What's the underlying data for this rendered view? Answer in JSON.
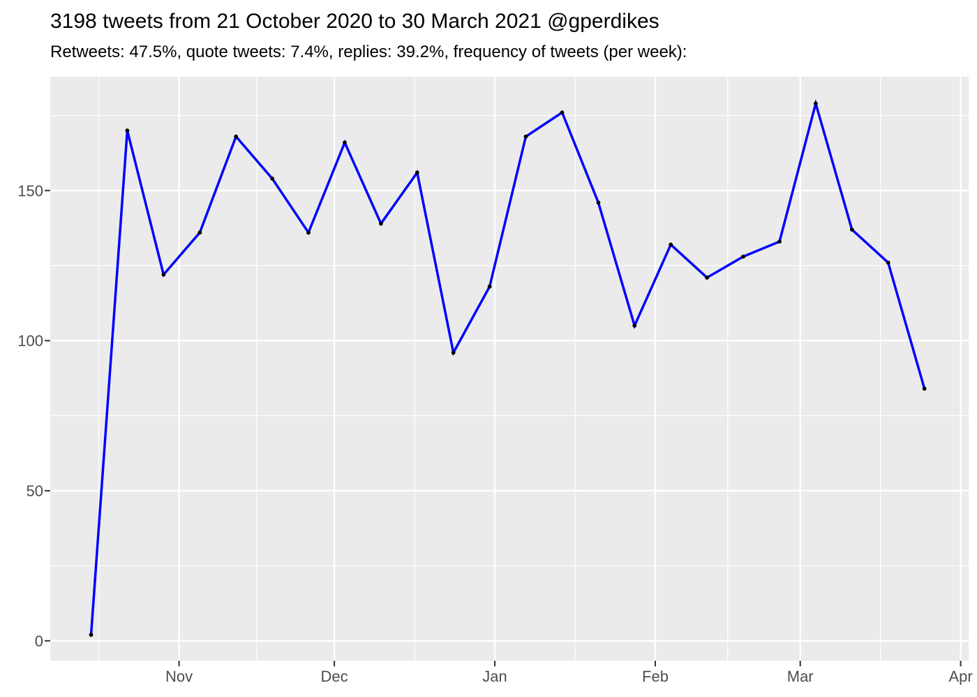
{
  "chart_data": {
    "type": "line",
    "title": "3198 tweets from 21 October 2020 to 30 March 2021 @gperdikes",
    "subtitle": "Retweets: 47.5%, quote tweets: 7.4%, replies: 39.2%, frequency of tweets (per week):",
    "xlabel": "",
    "ylabel": "",
    "legend": "none",
    "grid": true,
    "x": [
      "2020-10-15",
      "2020-10-22",
      "2020-10-29",
      "2020-11-05",
      "2020-11-12",
      "2020-11-19",
      "2020-11-26",
      "2020-12-03",
      "2020-12-10",
      "2020-12-17",
      "2020-12-24",
      "2020-12-31",
      "2021-01-07",
      "2021-01-14",
      "2021-01-21",
      "2021-01-28",
      "2021-02-04",
      "2021-02-11",
      "2021-02-18",
      "2021-02-25",
      "2021-03-04",
      "2021-03-11",
      "2021-03-18",
      "2021-03-25"
    ],
    "series": [
      {
        "name": "tweets per week",
        "values": [
          2,
          170,
          122,
          136,
          168,
          154,
          136,
          166,
          139,
          156,
          96,
          118,
          168,
          176,
          146,
          105,
          132,
          121,
          128,
          133,
          179,
          137,
          126,
          84
        ]
      }
    ],
    "x_axis": {
      "tick_labels": [
        "Nov",
        "Dec",
        "Jan",
        "Feb",
        "Mar",
        "Apr"
      ],
      "tick_day_offsets": [
        17,
        47,
        78,
        109,
        137,
        168
      ],
      "minor_day_offsets": [
        1.5,
        32,
        62.5,
        93.5,
        123,
        152.5
      ],
      "domain_days": [
        -7.89,
        169.54
      ]
    },
    "y_axis": {
      "tick_labels": [
        "0",
        "50",
        "100",
        "150"
      ],
      "tick_values": [
        0,
        50,
        100,
        150
      ],
      "minor_values": [
        25,
        75,
        125,
        175
      ],
      "domain": [
        -6.64,
        187.94
      ]
    },
    "colors": {
      "line": "#0000FF",
      "point": "#000000",
      "panel_background": "#EBEBEB",
      "gridline": "#FFFFFF",
      "axis_text": "#4D4D4D",
      "tick_mark": "#333333",
      "title_text": "#000000"
    }
  }
}
